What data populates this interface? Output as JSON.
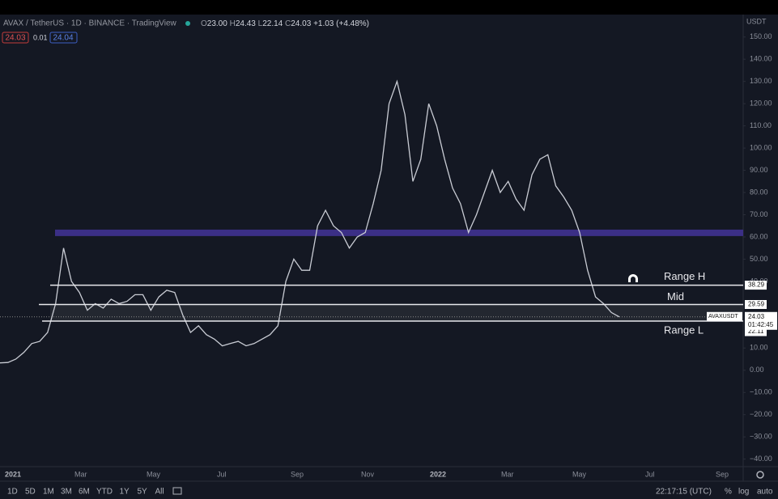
{
  "header": {
    "symbol": "AVAX / TetherUS · 1D · BINANCE · TradingView",
    "open_label": "O",
    "open": "23.00",
    "high_label": "H",
    "high": "24.43",
    "low_label": "L",
    "low": "22.14",
    "close_label": "C",
    "close": "24.03",
    "change": "+1.03 (+4.48%)",
    "bid": "24.03",
    "spread": "0.01",
    "ask": "24.04",
    "currency": "USDT"
  },
  "chart_data": {
    "type": "line",
    "color": "#c9ccd4",
    "values": [
      3.3,
      3.5,
      5,
      8,
      12,
      13,
      17,
      30,
      55,
      40,
      35,
      27,
      30,
      28,
      32,
      30,
      31,
      34,
      34,
      27,
      33,
      36,
      35,
      25,
      17,
      20,
      16,
      14,
      11,
      12,
      13,
      11,
      12,
      14,
      16,
      20,
      40,
      50,
      45,
      45,
      65,
      72,
      65,
      62,
      55,
      60,
      62,
      75,
      90,
      120,
      130,
      115,
      85,
      95,
      120,
      110,
      95,
      82,
      75,
      62,
      70,
      80,
      90,
      80,
      85,
      77,
      72,
      88,
      95,
      97,
      83,
      78,
      72,
      62,
      45,
      33,
      30,
      26,
      24.03
    ],
    "ylim": [
      -43.4,
      160.1
    ],
    "yticks": [
      {
        "value": 150,
        "label": "150.00"
      },
      {
        "value": 140,
        "label": "140.00"
      },
      {
        "value": 130,
        "label": "130.00"
      },
      {
        "value": 120,
        "label": "120.00"
      },
      {
        "value": 110,
        "label": "110.00"
      },
      {
        "value": 100,
        "label": "100.00"
      },
      {
        "value": 90,
        "label": "90.00"
      },
      {
        "value": 80,
        "label": "80.00"
      },
      {
        "value": 70,
        "label": "70.00"
      },
      {
        "value": 60,
        "label": "60.00"
      },
      {
        "value": 50,
        "label": "50.00"
      },
      {
        "value": 40,
        "label": "40.00"
      },
      {
        "value": 10,
        "label": "10.00"
      },
      {
        "value": 0,
        "label": "0.00"
      },
      {
        "value": -10,
        "label": "−10.00"
      },
      {
        "value": -20,
        "label": "−20.00"
      },
      {
        "value": -30,
        "label": "−30.00"
      },
      {
        "value": -40,
        "label": "−40.00"
      }
    ],
    "levels": [
      {
        "name": "Range H",
        "value": 38.29,
        "label": "38.29"
      },
      {
        "name": "Mid",
        "value": 29.59,
        "label": "29.59"
      },
      {
        "name": "Range L",
        "value": 22.11,
        "label": "22.11"
      }
    ],
    "zone": [
      60.4,
      63.3
    ],
    "zone_color": "#3b2f86",
    "ticker": "AVAXUSDT",
    "countdown": "01:42:45",
    "time_labels": [
      "2021",
      "Mar",
      "May",
      "Jul",
      "Sep",
      "Nov",
      "2022",
      "Mar",
      "May",
      "Jul",
      "Sep"
    ]
  },
  "toolbar": {
    "ranges": [
      "1D",
      "5D",
      "1M",
      "3M",
      "6M",
      "YTD",
      "1Y",
      "5Y",
      "All"
    ],
    "clock": "22:17:15 (UTC)",
    "percent": "%",
    "log": "log",
    "auto": "auto"
  }
}
